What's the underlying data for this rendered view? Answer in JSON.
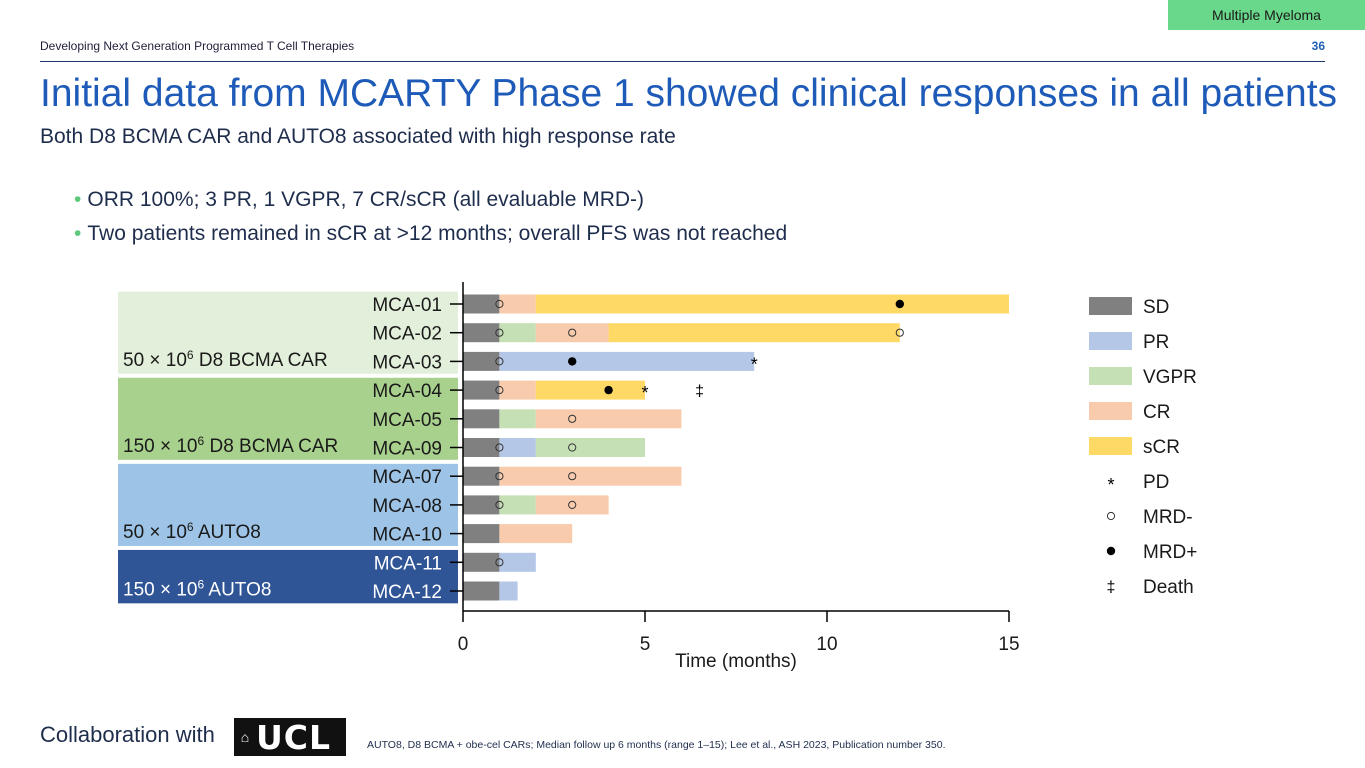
{
  "header": {
    "tag": "Multiple Myeloma",
    "left": "Developing Next Generation Programmed T Cell Therapies",
    "page_number": "36"
  },
  "title": "Initial data from MCARTY Phase 1 showed clinical responses in all patients",
  "subtitle": "Both D8 BCMA CAR and AUTO8 associated with high response rate",
  "bullets": [
    "ORR 100%; 3 PR, 1 VGPR, 7 CR/sCR (all evaluable MRD-)",
    "Two patients remained in sCR at >12 months; overall PFS was not reached"
  ],
  "footer": {
    "collab": "Collaboration with",
    "logo_text": "UCL",
    "note": "AUTO8, D8 BCMA + obe-cel CARs; Median follow up 6 months (range 1–15); Lee et al., ASH 2023, Publication number 350."
  },
  "colors": {
    "SD": "#808080",
    "PR": "#b4c7e7",
    "VGPR": "#c5e0b4",
    "CR": "#f8cbad",
    "sCR": "#ffd966",
    "group1": "#e2efda",
    "group2": "#a9d18e",
    "group3": "#9dc3e6",
    "group4": "#2f5597"
  },
  "chart_data": {
    "type": "swimmer",
    "xlabel": "Time (months)",
    "xlim": [
      0,
      15
    ],
    "xticks": [
      0,
      5,
      10,
      15
    ],
    "patients": [
      {
        "id": "MCA-01",
        "segments": [
          {
            "s": "SD",
            "from": 0,
            "to": 1
          },
          {
            "s": "CR",
            "from": 1,
            "to": 2
          },
          {
            "s": "sCR",
            "from": 2,
            "to": 15
          }
        ],
        "markers": [
          {
            "t": "MRD-",
            "x": 1
          },
          {
            "t": "MRD+",
            "x": 12
          }
        ]
      },
      {
        "id": "MCA-02",
        "segments": [
          {
            "s": "SD",
            "from": 0,
            "to": 1
          },
          {
            "s": "VGPR",
            "from": 1,
            "to": 2
          },
          {
            "s": "CR",
            "from": 2,
            "to": 4
          },
          {
            "s": "sCR",
            "from": 4,
            "to": 12
          }
        ],
        "markers": [
          {
            "t": "MRD-",
            "x": 1
          },
          {
            "t": "MRD-",
            "x": 3
          },
          {
            "t": "MRD-",
            "x": 12
          }
        ]
      },
      {
        "id": "MCA-03",
        "segments": [
          {
            "s": "SD",
            "from": 0,
            "to": 1
          },
          {
            "s": "PR",
            "from": 1,
            "to": 8
          }
        ],
        "markers": [
          {
            "t": "MRD-",
            "x": 1
          },
          {
            "t": "MRD+",
            "x": 3
          },
          {
            "t": "PD",
            "x": 8
          }
        ]
      },
      {
        "id": "MCA-04",
        "segments": [
          {
            "s": "SD",
            "from": 0,
            "to": 1
          },
          {
            "s": "CR",
            "from": 1,
            "to": 2
          },
          {
            "s": "sCR",
            "from": 2,
            "to": 5
          }
        ],
        "markers": [
          {
            "t": "MRD-",
            "x": 1
          },
          {
            "t": "MRD+",
            "x": 4
          },
          {
            "t": "PD",
            "x": 5
          },
          {
            "t": "Death",
            "x": 6.5
          }
        ]
      },
      {
        "id": "MCA-05",
        "segments": [
          {
            "s": "SD",
            "from": 0,
            "to": 1
          },
          {
            "s": "VGPR",
            "from": 1,
            "to": 2
          },
          {
            "s": "CR",
            "from": 2,
            "to": 6
          }
        ],
        "markers": [
          {
            "t": "MRD-",
            "x": 3
          }
        ]
      },
      {
        "id": "MCA-09",
        "segments": [
          {
            "s": "SD",
            "from": 0,
            "to": 1
          },
          {
            "s": "PR",
            "from": 1,
            "to": 2
          },
          {
            "s": "VGPR",
            "from": 2,
            "to": 5
          }
        ],
        "markers": [
          {
            "t": "MRD-",
            "x": 1
          },
          {
            "t": "MRD-",
            "x": 3
          }
        ]
      },
      {
        "id": "MCA-07",
        "segments": [
          {
            "s": "SD",
            "from": 0,
            "to": 1
          },
          {
            "s": "CR",
            "from": 1,
            "to": 6
          }
        ],
        "markers": [
          {
            "t": "MRD-",
            "x": 1
          },
          {
            "t": "MRD-",
            "x": 3
          }
        ]
      },
      {
        "id": "MCA-08",
        "segments": [
          {
            "s": "SD",
            "from": 0,
            "to": 1
          },
          {
            "s": "VGPR",
            "from": 1,
            "to": 2
          },
          {
            "s": "CR",
            "from": 2,
            "to": 4
          }
        ],
        "markers": [
          {
            "t": "MRD-",
            "x": 1
          },
          {
            "t": "MRD-",
            "x": 3
          }
        ]
      },
      {
        "id": "MCA-10",
        "segments": [
          {
            "s": "SD",
            "from": 0,
            "to": 1
          },
          {
            "s": "CR",
            "from": 1,
            "to": 3
          }
        ],
        "markers": []
      },
      {
        "id": "MCA-11",
        "segments": [
          {
            "s": "SD",
            "from": 0,
            "to": 1
          },
          {
            "s": "PR",
            "from": 1,
            "to": 2
          }
        ],
        "markers": [
          {
            "t": "MRD-",
            "x": 1
          }
        ]
      },
      {
        "id": "MCA-12",
        "segments": [
          {
            "s": "SD",
            "from": 0,
            "to": 1
          },
          {
            "s": "PR",
            "from": 1,
            "to": 1.5
          }
        ],
        "markers": []
      }
    ],
    "groups": [
      {
        "base": "50 × 10",
        "sup": "6",
        "name": " D8 BCMA CAR",
        "first": 0,
        "last": 2,
        "color_key": "group1",
        "text_color": "#1a1a1a"
      },
      {
        "base": "150 × 10",
        "sup": "6",
        "name": " D8 BCMA CAR",
        "first": 3,
        "last": 5,
        "color_key": "group2",
        "text_color": "#1a1a1a"
      },
      {
        "base": "50 × 10",
        "sup": "6",
        "name": " AUTO8",
        "first": 6,
        "last": 8,
        "color_key": "group3",
        "text_color": "#1a1a1a"
      },
      {
        "base": "150 × 10",
        "sup": "6",
        "name": " AUTO8",
        "first": 9,
        "last": 10,
        "color_key": "group4",
        "text_color": "#ffffff"
      }
    ],
    "legend": [
      {
        "key": "SD",
        "label": "SD",
        "kind": "box"
      },
      {
        "key": "PR",
        "label": "PR",
        "kind": "box"
      },
      {
        "key": "VGPR",
        "label": "VGPR",
        "kind": "box"
      },
      {
        "key": "CR",
        "label": "CR",
        "kind": "box"
      },
      {
        "key": "sCR",
        "label": "sCR",
        "kind": "box"
      },
      {
        "key": "PD",
        "label": "PD",
        "kind": "star"
      },
      {
        "key": "MRD-",
        "label": "MRD-",
        "kind": "open"
      },
      {
        "key": "MRD+",
        "label": "MRD+",
        "kind": "filled"
      },
      {
        "key": "Death",
        "label": "Death",
        "kind": "dagger"
      }
    ]
  }
}
